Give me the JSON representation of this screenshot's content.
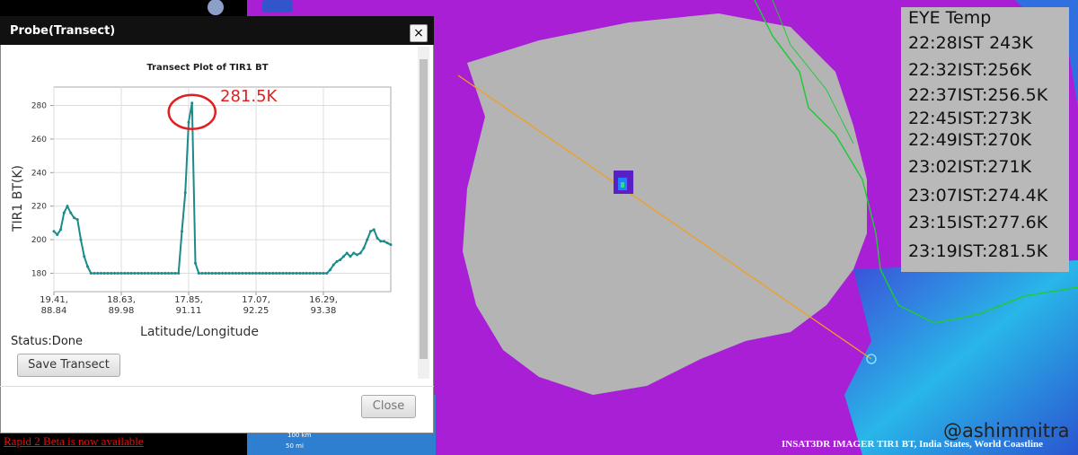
{
  "dialog": {
    "title": "Probe(Transect)",
    "close_icon": "×",
    "status": "Status:Done",
    "save_button": "Save Transect",
    "close_button": "Close"
  },
  "chart_data": {
    "type": "line",
    "title": "Transect Plot of TIR1 BT",
    "xlabel": "Latitude/Longitude",
    "ylabel": "TIR1 BT(K)",
    "annotation": "281.5K",
    "categories": [
      "19.41,\n88.84",
      null,
      null,
      null,
      null,
      null,
      null,
      null,
      null,
      null,
      null,
      null,
      null,
      null,
      null,
      null,
      null,
      null,
      null,
      null,
      "18.63,\n89.98",
      null,
      null,
      null,
      null,
      null,
      null,
      null,
      null,
      null,
      null,
      null,
      null,
      null,
      null,
      null,
      null,
      null,
      null,
      null,
      "17.85,\n91.11",
      null,
      null,
      null,
      null,
      null,
      null,
      null,
      null,
      null,
      null,
      null,
      null,
      null,
      null,
      null,
      null,
      null,
      null,
      null,
      "17.07,\n92.25",
      null,
      null,
      null,
      null,
      null,
      null,
      null,
      null,
      null,
      null,
      null,
      null,
      null,
      null,
      null,
      null,
      null,
      null,
      null,
      "16.29,\n93.38",
      null,
      null,
      null,
      null,
      null,
      null,
      null,
      null,
      null,
      null,
      null,
      null,
      null,
      null,
      null,
      null,
      null,
      null,
      null,
      null
    ],
    "values": [
      205,
      203,
      206,
      216,
      220,
      216,
      213,
      212,
      200,
      190,
      184,
      180,
      180,
      180,
      180,
      180,
      180,
      180,
      180,
      180,
      180,
      180,
      180,
      180,
      180,
      180,
      180,
      180,
      180,
      180,
      180,
      180,
      180,
      180,
      180,
      180,
      180,
      180,
      205,
      228,
      270,
      281.5,
      186,
      180,
      180,
      180,
      180,
      180,
      180,
      180,
      180,
      180,
      180,
      180,
      180,
      180,
      180,
      180,
      180,
      180,
      180,
      180,
      180,
      180,
      180,
      180,
      180,
      180,
      180,
      180,
      180,
      180,
      180,
      180,
      180,
      180,
      180,
      180,
      180,
      180,
      180,
      180,
      182,
      185,
      187,
      188,
      190,
      192,
      190,
      192,
      191,
      192,
      195,
      200,
      205,
      206,
      201,
      199,
      199,
      198,
      197
    ],
    "color": "#1a8a8a",
    "ylim": [
      169,
      291
    ],
    "yticks": [
      180,
      200,
      220,
      240,
      260,
      280
    ],
    "grid": true
  },
  "annotation_box": {
    "title": "EYE Temp",
    "lines": [
      "22:28IST 243K",
      "22:32IST:256K",
      "22:37IST:256.5K",
      "22:45IST:273K",
      "22:49IST:270K",
      "23:02IST:271K",
      "23:07IST:274.4K",
      "23:15IST:277.6K",
      "23:19IST:281.5K"
    ]
  },
  "footer": {
    "link": "Rapid 2 Beta is now available",
    "credit": "@ashimmitra",
    "caption": "INSAT3DR IMAGER TIR1 BT, India States, World Coastline"
  },
  "scale_bar": [
    "100 km",
    "50 mi"
  ]
}
